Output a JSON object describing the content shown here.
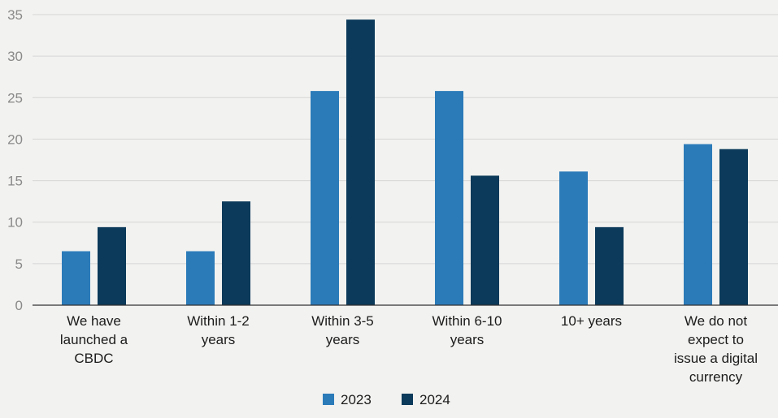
{
  "chart_data": {
    "type": "bar",
    "categories": [
      [
        "We have",
        "launched a",
        "CBDC"
      ],
      [
        "Within 1-2",
        "years"
      ],
      [
        "Within 3-5",
        "years"
      ],
      [
        "Within 6-10",
        "years"
      ],
      [
        "10+ years"
      ],
      [
        "We do not",
        "expect to",
        "issue a digital",
        "currency"
      ]
    ],
    "series": [
      {
        "name": "2023",
        "values": [
          6.5,
          6.5,
          25.8,
          25.8,
          16.1,
          19.4
        ],
        "color": "#2b7bb9"
      },
      {
        "name": "2024",
        "values": [
          9.4,
          12.5,
          34.4,
          15.6,
          9.4,
          18.8
        ],
        "color": "#0b3a5a"
      }
    ],
    "yticks": [
      0,
      5,
      10,
      15,
      20,
      25,
      30,
      35
    ],
    "ylim": [
      0,
      35
    ],
    "title": "",
    "xlabel": "",
    "ylabel": "",
    "grid": true,
    "legend_position": "bottom-center"
  }
}
